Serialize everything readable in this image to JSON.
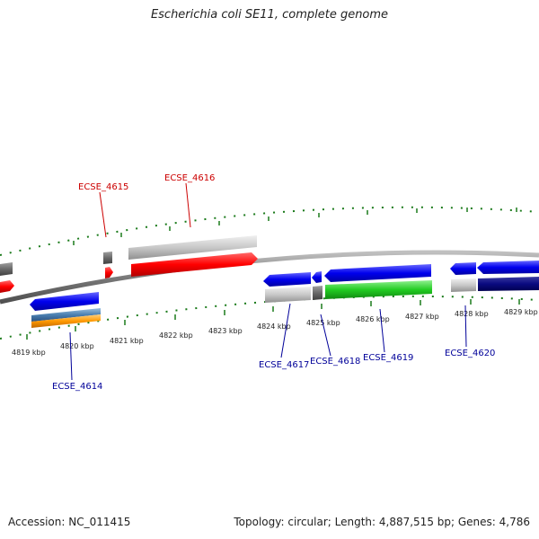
{
  "title": "Escherichia coli SE11, complete genome",
  "footer": {
    "accession": "Accession: NC_011415",
    "stats": "Topology: circular; Length: 4,887,515 bp; Genes: 4,786"
  },
  "colors": {
    "forward_label": "#cc0000",
    "reverse_label": "#000099",
    "tick": "#1a7a1a",
    "backbone": "#7a7a7a"
  },
  "kbp_ticks": [
    "4819 kbp",
    "4820 kbp",
    "4821 kbp",
    "4822 kbp",
    "4823 kbp",
    "4824 kbp",
    "4825 kbp",
    "4826 kbp",
    "4827 kbp",
    "4828 kbp",
    "4829 kbp"
  ],
  "gene_labels": [
    {
      "text": "ECSE_4615",
      "strand": "forward"
    },
    {
      "text": "ECSE_4616",
      "strand": "forward"
    },
    {
      "text": "ECSE_4614",
      "strand": "reverse"
    },
    {
      "text": "ECSE_4617",
      "strand": "reverse"
    },
    {
      "text": "ECSE_4618",
      "strand": "reverse"
    },
    {
      "text": "ECSE_4619",
      "strand": "reverse"
    },
    {
      "text": "ECSE_4620",
      "strand": "reverse"
    }
  ]
}
